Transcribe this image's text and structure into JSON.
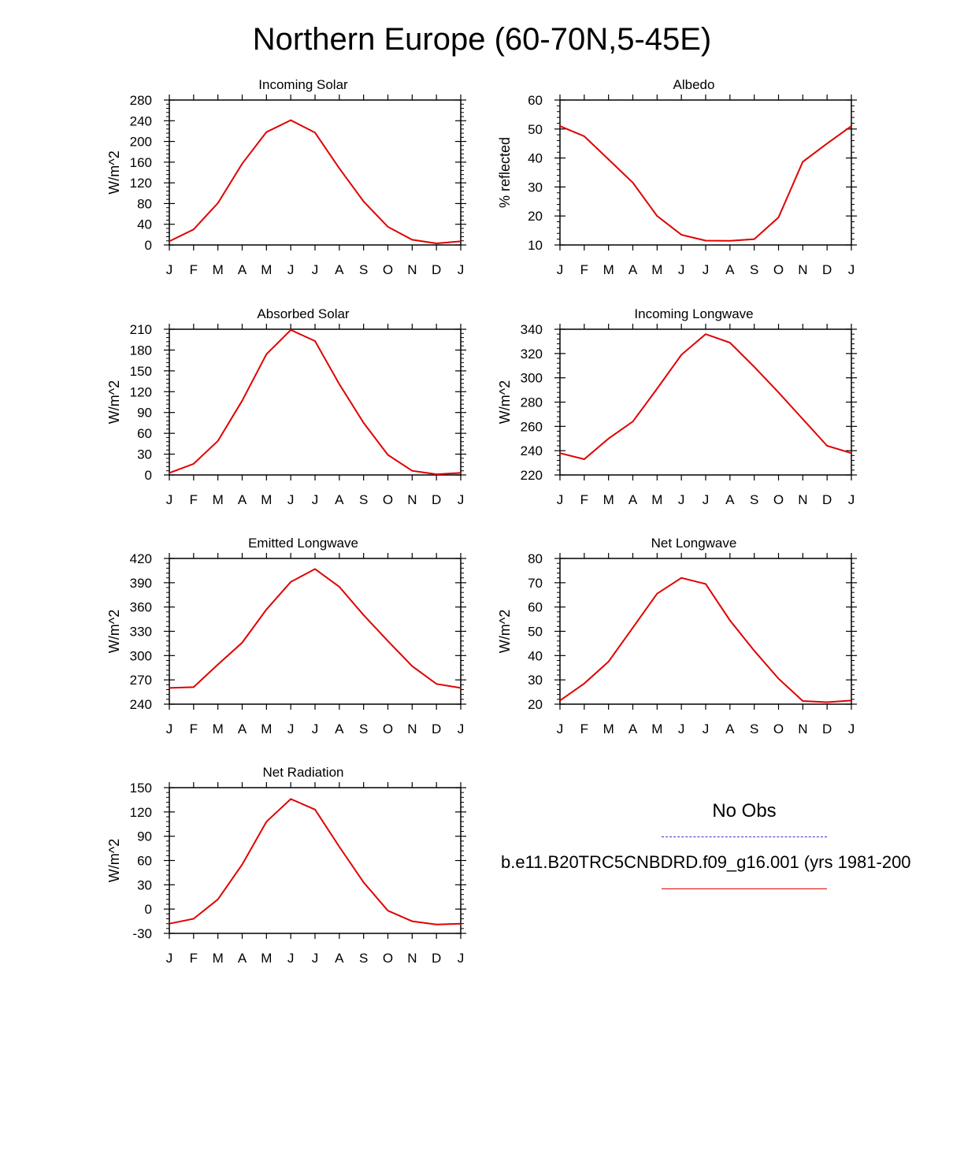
{
  "figure": {
    "title": "Northern Europe (60-70N,5-45E)"
  },
  "months": [
    "J",
    "F",
    "M",
    "A",
    "M",
    "J",
    "J",
    "A",
    "S",
    "O",
    "N",
    "D",
    "J"
  ],
  "colors": {
    "case_line": "#e00000",
    "obs_line": "#3333cc"
  },
  "legend": {
    "obs_label": "No Obs",
    "case_label": "b.e11.B20TRC5CNBDRD.f09_g16.001 (yrs 1981-200"
  },
  "chart_data": [
    {
      "type": "line",
      "title": "Incoming Solar",
      "ylabel": "W/m^2",
      "ylim": [
        0,
        280
      ],
      "yticks": [
        0,
        40,
        80,
        120,
        160,
        200,
        240,
        280
      ],
      "x": [
        "J",
        "F",
        "M",
        "A",
        "M",
        "J",
        "J",
        "A",
        "S",
        "O",
        "N",
        "D",
        "J"
      ],
      "series": [
        {
          "values": [
            7,
            30,
            81,
            157,
            218,
            241,
            217,
            148,
            84,
            35,
            10,
            3,
            7
          ]
        }
      ]
    },
    {
      "type": "line",
      "title": "Albedo",
      "ylabel": "% reflected",
      "ylim": [
        10,
        60
      ],
      "yticks": [
        10,
        20,
        30,
        40,
        50,
        60
      ],
      "x": [
        "J",
        "F",
        "M",
        "A",
        "M",
        "J",
        "J",
        "A",
        "S",
        "O",
        "N",
        "D",
        "J"
      ],
      "series": [
        {
          "values": [
            51,
            47.5,
            39.5,
            31.5,
            20,
            13.5,
            11.5,
            11.4,
            12,
            19.5,
            38.7,
            45,
            51
          ]
        }
      ]
    },
    {
      "type": "line",
      "title": "Absorbed Solar",
      "ylabel": "W/m^2",
      "ylim": [
        0,
        210
      ],
      "yticks": [
        0,
        30,
        60,
        90,
        120,
        150,
        180,
        210
      ],
      "x": [
        "J",
        "F",
        "M",
        "A",
        "M",
        "J",
        "J",
        "A",
        "S",
        "O",
        "N",
        "D",
        "J"
      ],
      "series": [
        {
          "values": [
            3,
            16,
            49,
            107,
            174,
            209,
            193,
            131,
            75,
            29,
            6,
            1,
            3
          ]
        }
      ]
    },
    {
      "type": "line",
      "title": "Incoming Longwave",
      "ylabel": "W/m^2",
      "ylim": [
        220,
        340
      ],
      "yticks": [
        220,
        240,
        260,
        280,
        300,
        320,
        340
      ],
      "x": [
        "J",
        "F",
        "M",
        "A",
        "M",
        "J",
        "J",
        "A",
        "S",
        "O",
        "N",
        "D",
        "J"
      ],
      "series": [
        {
          "values": [
            238,
            233,
            250,
            264,
            291,
            319,
            336,
            329,
            309,
            288,
            266,
            244,
            238
          ]
        }
      ]
    },
    {
      "type": "line",
      "title": "Emitted Longwave",
      "ylabel": "W/m^2",
      "ylim": [
        240,
        420
      ],
      "yticks": [
        240,
        270,
        300,
        330,
        360,
        390,
        420
      ],
      "x": [
        "J",
        "F",
        "M",
        "A",
        "M",
        "J",
        "J",
        "A",
        "S",
        "O",
        "N",
        "D",
        "J"
      ],
      "series": [
        {
          "values": [
            260,
            261,
            289,
            316,
            357,
            391,
            407,
            385,
            350,
            318,
            287,
            265,
            260
          ]
        }
      ]
    },
    {
      "type": "line",
      "title": "Net Longwave",
      "ylabel": "W/m^2",
      "ylim": [
        20,
        80
      ],
      "yticks": [
        20,
        30,
        40,
        50,
        60,
        70,
        80
      ],
      "x": [
        "J",
        "F",
        "M",
        "A",
        "M",
        "J",
        "J",
        "A",
        "S",
        "O",
        "N",
        "D",
        "J"
      ],
      "series": [
        {
          "values": [
            21.5,
            28.5,
            37.5,
            51.5,
            65.5,
            72,
            69.5,
            54.5,
            42,
            30.5,
            21.3,
            20.8,
            21.5
          ]
        }
      ]
    },
    {
      "type": "line",
      "title": "Net Radiation",
      "ylabel": "W/m^2",
      "ylim": [
        -30,
        150
      ],
      "yticks": [
        -30,
        0,
        30,
        60,
        90,
        120,
        150
      ],
      "x": [
        "J",
        "F",
        "M",
        "A",
        "M",
        "J",
        "J",
        "A",
        "S",
        "O",
        "N",
        "D",
        "J"
      ],
      "series": [
        {
          "values": [
            -18,
            -12,
            12,
            55,
            108,
            136,
            123,
            77,
            33,
            -2,
            -15,
            -19,
            -18
          ]
        }
      ]
    }
  ]
}
